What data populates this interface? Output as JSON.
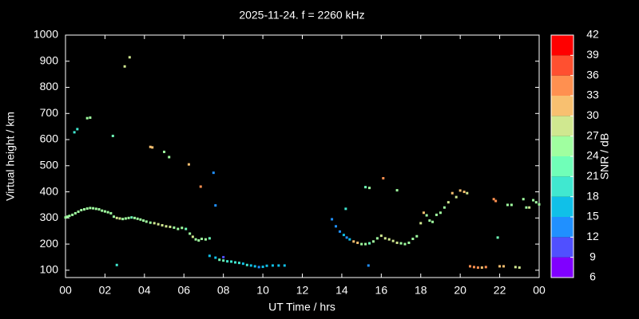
{
  "chart_data": {
    "type": "scatter",
    "title": "2025-11-24. f = 2260 kHz",
    "x_label": "UT Time / hrs",
    "y_label": "Virtual height / km",
    "colorbar_label": "SNR / dB",
    "xlim": [
      0,
      24
    ],
    "ylim": [
      72,
      1000
    ],
    "xticks": [
      {
        "value": 0,
        "label": "00"
      },
      {
        "value": 2,
        "label": "02"
      },
      {
        "value": 4,
        "label": "04"
      },
      {
        "value": 6,
        "label": "06"
      },
      {
        "value": 8,
        "label": "08"
      },
      10,
      12,
      14,
      16,
      18,
      20,
      22,
      {
        "value": 24,
        "label": "00"
      }
    ],
    "yticks": [
      100,
      200,
      300,
      400,
      500,
      600,
      700,
      800,
      900,
      1000
    ],
    "clim": [
      6,
      42
    ],
    "cticks": [
      6,
      9,
      12,
      15,
      18,
      21,
      24,
      27,
      30,
      33,
      36,
      39,
      42
    ],
    "colorscale": [
      "#8000ff",
      "#5050ff",
      "#2090ff",
      "#10c0e8",
      "#40e8d0",
      "#70ffb8",
      "#a0ffa0",
      "#d0e890",
      "#f8c070",
      "#ff9050",
      "#ff5030",
      "#ff0000"
    ],
    "x": [
      0.0,
      0.1,
      0.2,
      0.35,
      0.5,
      0.65,
      0.8,
      0.95,
      1.1,
      1.25,
      1.4,
      1.55,
      1.7,
      1.85,
      2.0,
      2.15,
      2.3,
      2.45,
      2.6,
      2.75,
      2.9,
      3.05,
      3.2,
      3.35,
      3.5,
      3.65,
      3.8,
      3.95,
      4.1,
      4.3,
      4.5,
      4.7,
      4.9,
      5.1,
      5.3,
      5.5,
      5.7,
      5.9,
      6.1,
      6.3,
      6.45,
      6.6,
      6.75,
      6.9,
      7.1,
      7.3,
      7.3,
      7.6,
      7.8,
      8.0,
      8.2,
      8.4,
      8.6,
      8.8,
      9.0,
      9.2,
      9.4,
      9.6,
      9.8,
      10.0,
      10.2,
      10.5,
      10.8,
      11.1,
      0.45,
      0.6,
      1.1,
      1.25,
      2.4,
      2.6,
      3.0,
      3.25,
      4.3,
      4.4,
      5.0,
      5.25,
      6.25,
      6.85,
      7.5,
      7.6,
      8.0,
      13.5,
      13.7,
      13.9,
      14.1,
      14.25,
      14.4,
      14.6,
      14.8,
      15.0,
      15.2,
      15.4,
      15.6,
      15.8,
      16.0,
      16.2,
      16.4,
      16.6,
      16.8,
      17.0,
      17.2,
      17.4,
      17.6,
      17.8,
      18.0,
      18.15,
      18.3,
      18.45,
      18.6,
      18.8,
      19.0,
      19.2,
      19.4,
      19.6,
      19.8,
      20.0,
      20.2,
      20.35,
      14.2,
      15.2,
      15.4,
      15.35,
      16.1,
      16.8,
      20.5,
      20.7,
      20.9,
      21.1,
      21.3,
      21.7,
      21.8,
      21.9,
      22.0,
      22.2,
      22.4,
      22.6,
      22.8,
      23.0,
      23.2,
      23.35,
      23.5,
      23.7,
      23.85,
      24.0
    ],
    "y": [
      302,
      305,
      308,
      312,
      318,
      324,
      330,
      333,
      336,
      338,
      337,
      335,
      333,
      328,
      325,
      322,
      318,
      305,
      300,
      298,
      296,
      298,
      300,
      302,
      300,
      297,
      294,
      290,
      286,
      282,
      280,
      276,
      272,
      268,
      266,
      263,
      258,
      262,
      258,
      240,
      228,
      218,
      214,
      220,
      218,
      222,
      155,
      148,
      140,
      137,
      134,
      133,
      130,
      128,
      125,
      120,
      118,
      115,
      112,
      113,
      117,
      118,
      118,
      118,
      628,
      640,
      682,
      684,
      614,
      120,
      880,
      915,
      572,
      570,
      553,
      533,
      505,
      420,
      473,
      348,
      150,
      295,
      268,
      248,
      235,
      225,
      218,
      210,
      205,
      200,
      200,
      203,
      210,
      222,
      232,
      222,
      218,
      212,
      205,
      203,
      200,
      205,
      220,
      230,
      280,
      320,
      310,
      290,
      285,
      312,
      320,
      340,
      360,
      395,
      380,
      405,
      400,
      395,
      335,
      418,
      415,
      118,
      452,
      406,
      115,
      112,
      110,
      110,
      112,
      372,
      365,
      225,
      115,
      115,
      350,
      350,
      112,
      110,
      372,
      340,
      340,
      368,
      360,
      352
    ],
    "snr": [
      25,
      25,
      24,
      25,
      25,
      25,
      26,
      25,
      24,
      25,
      25,
      24,
      25,
      25,
      25,
      24,
      25,
      26,
      27,
      27,
      26,
      25,
      24,
      23,
      24,
      25,
      26,
      25,
      24,
      26,
      27,
      28,
      29,
      28,
      27,
      26,
      25,
      24,
      21,
      26,
      27,
      25,
      24,
      26,
      25,
      23,
      16,
      17,
      22,
      23,
      20,
      19,
      20,
      19,
      17,
      18,
      16,
      15,
      14,
      15,
      16,
      15,
      16,
      16,
      18,
      20,
      24,
      24,
      21,
      19,
      27,
      29,
      31,
      31,
      25,
      26,
      31,
      33,
      12,
      14,
      11,
      12,
      13,
      14,
      15,
      13,
      16,
      30,
      32,
      25,
      24,
      22,
      24,
      26,
      28,
      29,
      28,
      27,
      28,
      26,
      25,
      26,
      25,
      24,
      27,
      30,
      26,
      25,
      26,
      25,
      24,
      25,
      27,
      32,
      29,
      32,
      30,
      28,
      19,
      23,
      24,
      12,
      34,
      24,
      33,
      34,
      33,
      32,
      33,
      34,
      33,
      21,
      31,
      30,
      25,
      24,
      29,
      28,
      25,
      26,
      27,
      25,
      24,
      25
    ]
  }
}
